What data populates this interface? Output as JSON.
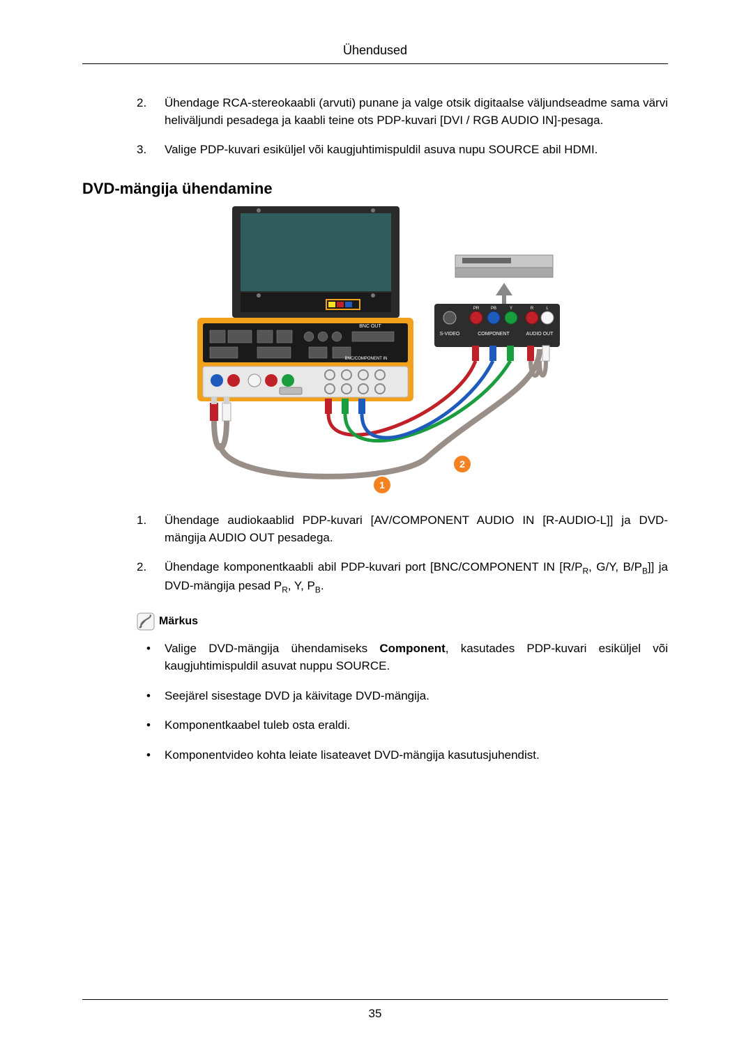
{
  "header": {
    "title": "Ühendused"
  },
  "top_list": [
    {
      "num": "2.",
      "text": "Ühendage RCA-stereokaabli (arvuti) punane ja valge otsik digitaalse väljundseadme sama värvi heliväljundi pesadega ja kaabli teine ots PDP-kuvari [DVI / RGB AUDIO IN]-pesaga."
    },
    {
      "num": "3.",
      "text": "Valige PDP-kuvari esiküljel või kaugjuhtimispuldil asuva nupu SOURCE abil HDMI."
    }
  ],
  "section_heading": "DVD-mängija ühendamine",
  "diagram": {
    "tv_body": "#2a2a2a",
    "tv_screen": "#2f5d5d",
    "panel_bg": "#f1a11c",
    "panel_dark": "#1a1a1a",
    "dvd_body": "#c8c8c8",
    "dvd_body2": "#a8a8a8",
    "red": "#c02028",
    "white": "#f5f5f5",
    "blue": "#1e5bbd",
    "green": "#1a9d3f",
    "black": "#111111",
    "yellow": "#f6e11a",
    "orange": "#f58220",
    "label_bg": "#2d2d2d",
    "label_fg": "#ffffff",
    "badge1": "1",
    "badge2": "2"
  },
  "bottom_list": [
    {
      "num": "1.",
      "text": "Ühendage audiokaablid PDP-kuvari [AV/COMPONENT AUDIO IN [R-AUDIO-L]] ja DVD-mängija AUDIO OUT pesadega."
    },
    {
      "num": "2.",
      "html": "Ühendage komponentkaabli abil PDP-kuvari port [BNC/COMPONENT IN [R/P<sub>R</sub>, G/Y, B/P<sub>B</sub>]] ja DVD-mängija pesad P<sub>R</sub>, Y, P<sub>B</sub>."
    }
  ],
  "note_label": "Märkus",
  "bullets": [
    {
      "html": "Valige DVD-mängija ühendamiseks <span class=\"bold\">Component</span>, kasutades PDP-kuvari esiküljel või kaugjuhtimispuldil asuvat nuppu SOURCE."
    },
    {
      "html": "Seejärel sisestage DVD ja käivitage DVD-mängija."
    },
    {
      "html": "Komponentkaabel tuleb osta eraldi."
    },
    {
      "html": "Komponentvideo kohta leiate lisateavet DVD-mängija kasutusjuhendist."
    }
  ],
  "footer": {
    "page": "35"
  }
}
